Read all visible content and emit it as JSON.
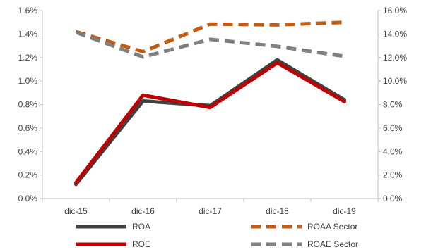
{
  "chart_data": {
    "type": "line",
    "title": "",
    "categories": [
      "dic-15",
      "dic-16",
      "dic-17",
      "dic-18",
      "dic-19"
    ],
    "y_left": {
      "min": 0.0,
      "max": 1.6,
      "step": 0.2,
      "tick_labels": [
        "0.0%",
        "0.2%",
        "0.4%",
        "0.6%",
        "0.8%",
        "1.0%",
        "1.2%",
        "1.4%",
        "1.6%"
      ]
    },
    "y_right": {
      "min": 0.0,
      "max": 16.0,
      "step": 2.0,
      "tick_labels": [
        "0.0%",
        "2.0%",
        "4.0%",
        "6.0%",
        "8.0%",
        "10.0%",
        "12.0%",
        "14.0%",
        "16.0%"
      ]
    },
    "grid": false,
    "legend_position": "bottom",
    "series": [
      {
        "name": "ROA",
        "axis": "left",
        "values": [
          0.12,
          0.83,
          0.79,
          1.18,
          0.84
        ],
        "color": "#404040",
        "style": "solid"
      },
      {
        "name": "ROE",
        "axis": "right",
        "values": [
          1.35,
          8.8,
          7.75,
          11.55,
          8.25
        ],
        "color": "#c00000",
        "style": "solid"
      },
      {
        "name": "ROAA Sector",
        "axis": "right",
        "values": [
          14.2,
          12.5,
          14.85,
          14.78,
          15.0
        ],
        "color": "#c55a11",
        "style": "dashed"
      },
      {
        "name": "ROAE Sector",
        "axis": "right",
        "values": [
          14.15,
          12.05,
          13.55,
          12.95,
          12.1
        ],
        "color": "#7f7f7f",
        "style": "dashed"
      }
    ]
  }
}
